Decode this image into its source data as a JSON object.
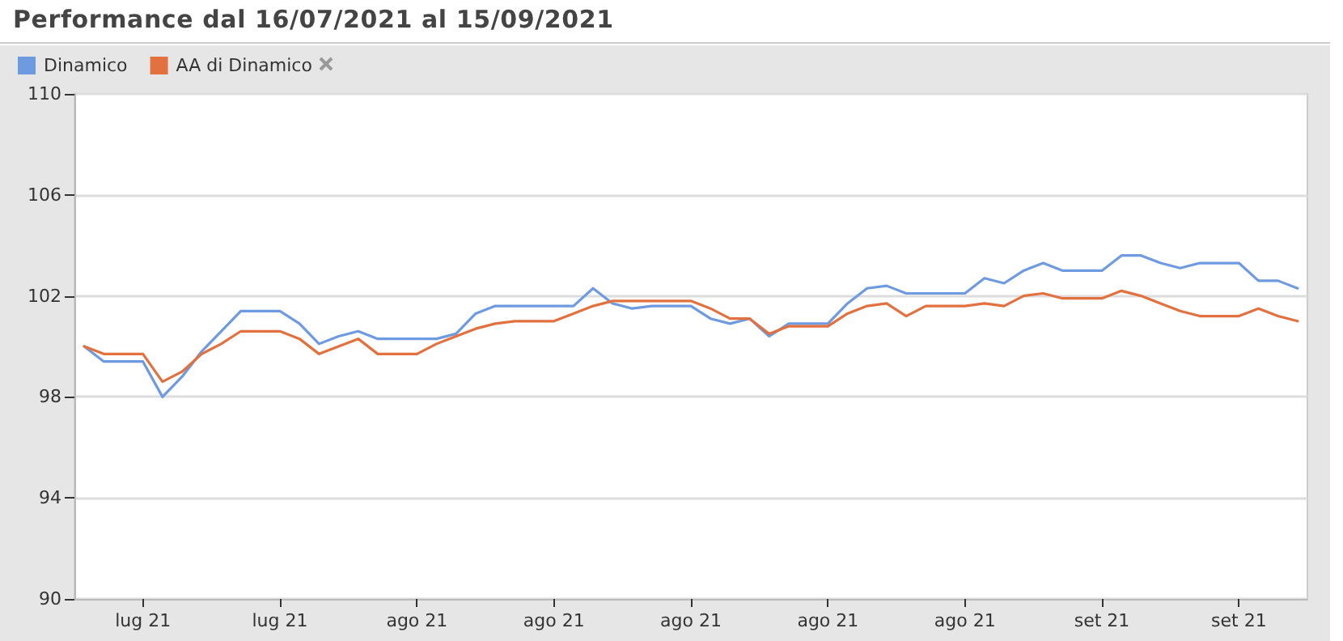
{
  "chart_data": {
    "type": "line",
    "title": "Performance dal 16/07/2021 al 15/09/2021",
    "categories": [
      null,
      null,
      null,
      "lug 21",
      null,
      null,
      null,
      null,
      null,
      null,
      "lug 21",
      null,
      null,
      null,
      null,
      null,
      null,
      "ago 21",
      null,
      null,
      null,
      null,
      null,
      null,
      "ago 21",
      null,
      null,
      null,
      null,
      null,
      null,
      "ago 21",
      null,
      null,
      null,
      null,
      null,
      null,
      "ago 21",
      null,
      null,
      null,
      null,
      null,
      null,
      "ago 21",
      null,
      null,
      null,
      null,
      null,
      null,
      "set 21",
      null,
      null,
      null,
      null,
      null,
      null,
      "set 21",
      null,
      null,
      null
    ],
    "series": [
      {
        "name": "Dinamico",
        "color": "#6e9ae0",
        "values": [
          100,
          99.4,
          99.4,
          99.4,
          98,
          98.8,
          99.8,
          100.6,
          101.4,
          101.4,
          101.4,
          100.9,
          100.1,
          100.4,
          100.6,
          100.3,
          100.3,
          100.3,
          100.3,
          100.5,
          101.3,
          101.6,
          101.6,
          101.6,
          101.6,
          101.6,
          102.3,
          101.7,
          101.5,
          101.6,
          101.6,
          101.6,
          101.1,
          100.9,
          101.1,
          100.4,
          100.9,
          100.9,
          100.9,
          101.7,
          102.3,
          102.4,
          102.1,
          102.1,
          102.1,
          102.1,
          102.7,
          102.5,
          103,
          103.3,
          103,
          103,
          103,
          103.6,
          103.6,
          103.3,
          103.1,
          103.3,
          103.3,
          103.3,
          102.6,
          102.6,
          102.3
        ]
      },
      {
        "name": "AA di Dinamico",
        "color": "#e2713f",
        "values": [
          100,
          99.7,
          99.7,
          99.7,
          98.6,
          99,
          99.7,
          100.1,
          100.6,
          100.6,
          100.6,
          100.3,
          99.7,
          100,
          100.3,
          99.7,
          99.7,
          99.7,
          100.1,
          100.4,
          100.7,
          100.9,
          101,
          101,
          101,
          101.3,
          101.6,
          101.8,
          101.8,
          101.8,
          101.8,
          101.8,
          101.5,
          101.1,
          101.1,
          100.5,
          100.8,
          100.8,
          100.8,
          101.3,
          101.6,
          101.7,
          101.2,
          101.6,
          101.6,
          101.6,
          101.7,
          101.6,
          102,
          102.1,
          101.9,
          101.9,
          101.9,
          102.2,
          102,
          101.7,
          101.4,
          101.2,
          101.2,
          101.2,
          101.5,
          101.2,
          101
        ]
      }
    ],
    "ylim": [
      90,
      110
    ],
    "yticks": [
      90,
      94,
      98,
      102,
      106,
      110
    ],
    "grid": "y",
    "legend": "top left",
    "marker": "none",
    "line_style": "solid"
  }
}
